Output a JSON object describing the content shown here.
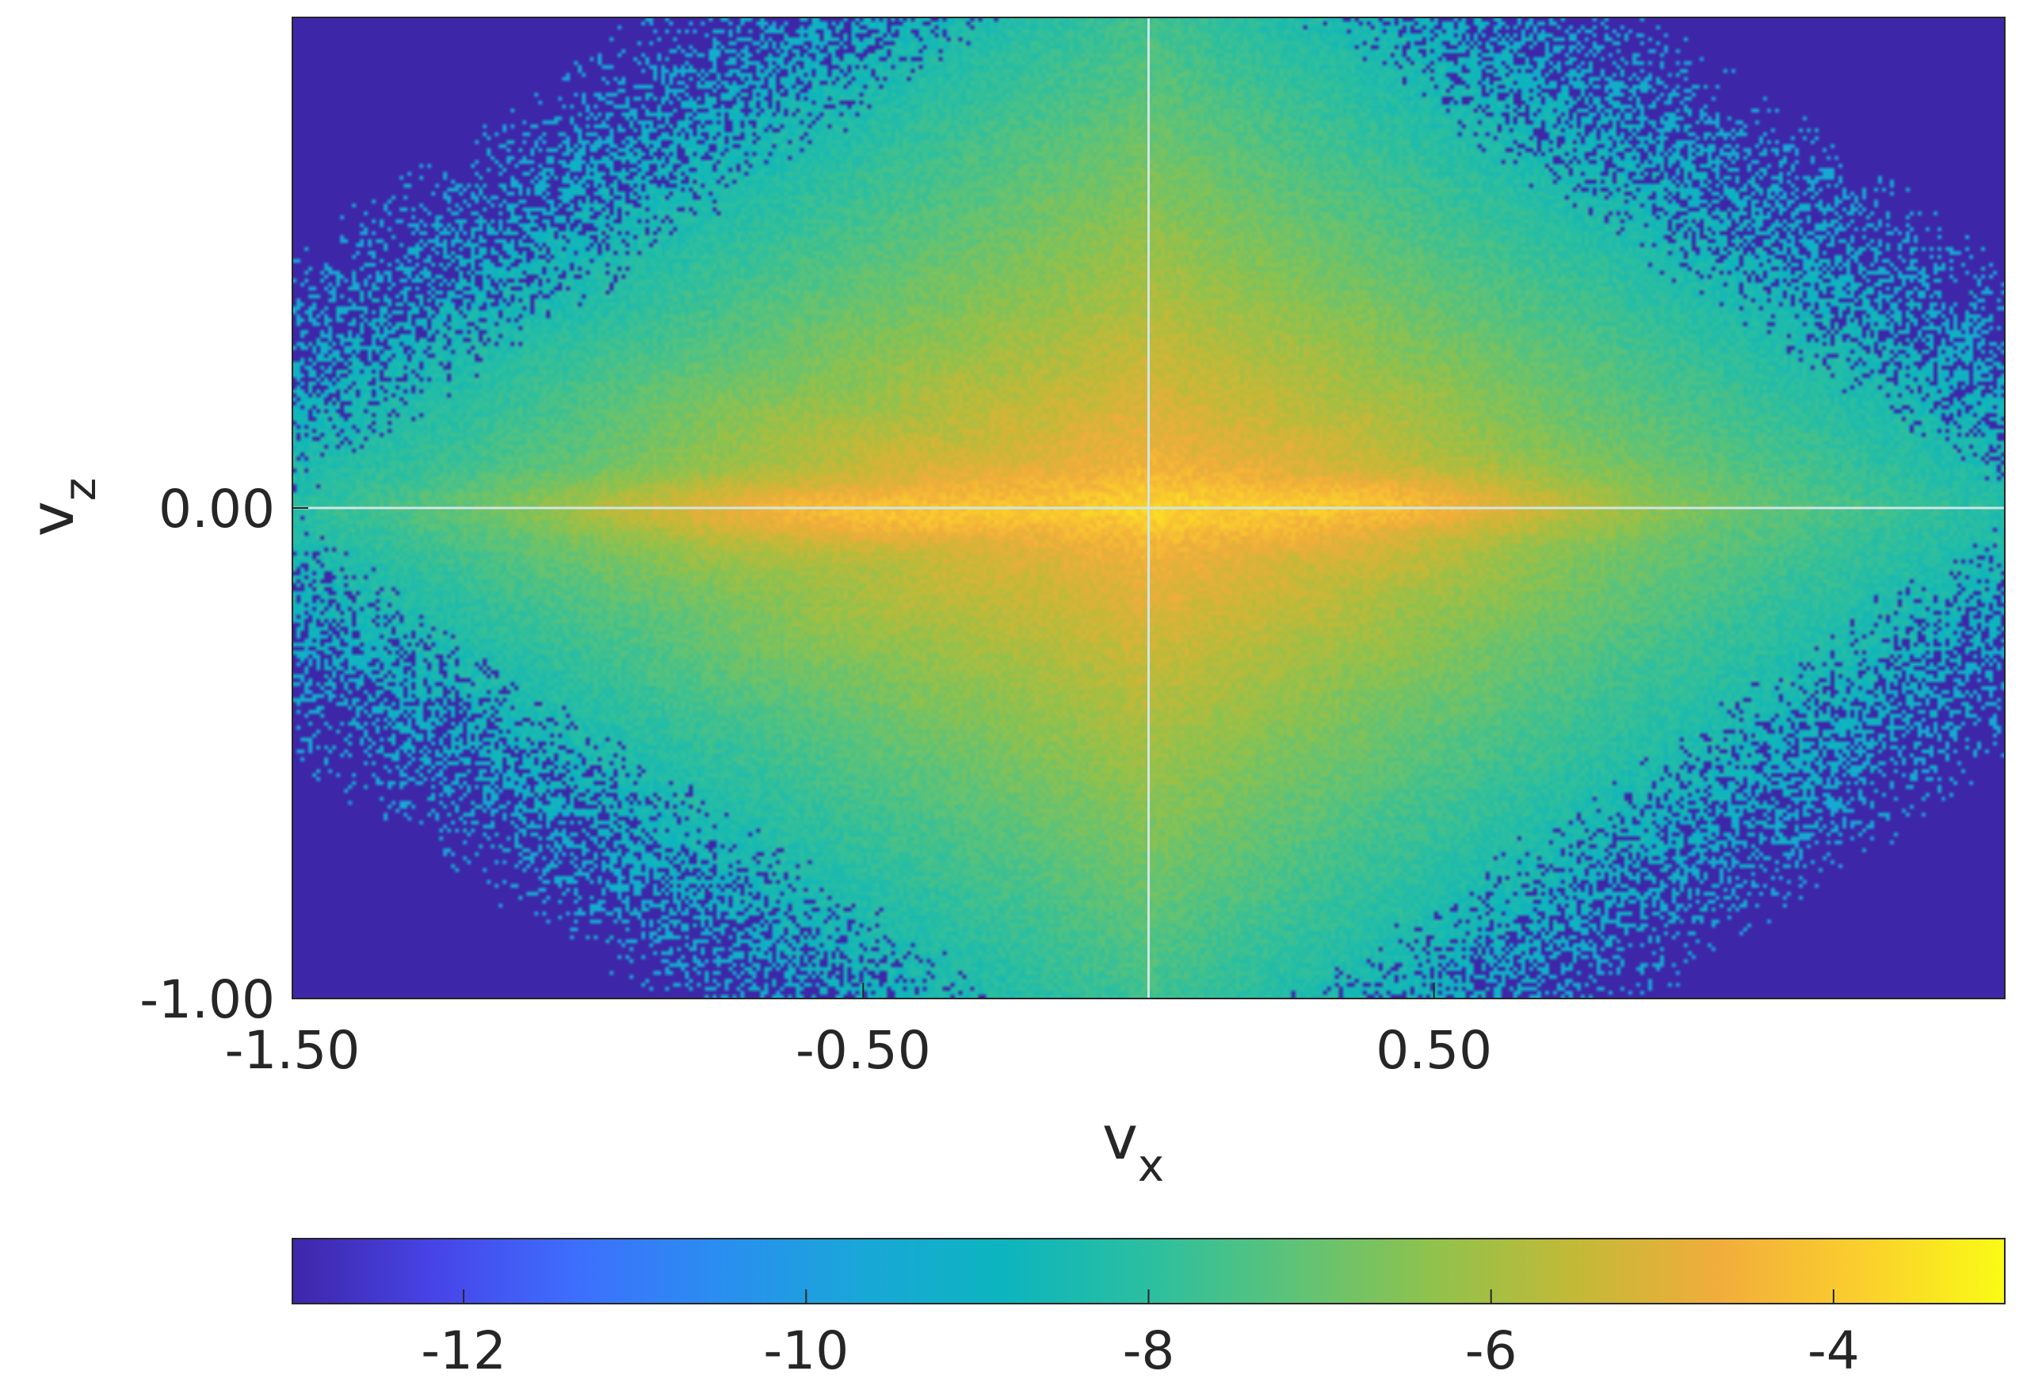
{
  "chart_data": {
    "type": "heatmap",
    "title": "",
    "xlabel": {
      "base": "v",
      "sub": "x"
    },
    "ylabel": {
      "base": "v",
      "sub": "z"
    },
    "xlim": [
      -1.5,
      1.5
    ],
    "ylim": [
      -1.0,
      1.0
    ],
    "xticks": [
      -1.5,
      -0.5,
      0.5
    ],
    "xtick_labels": [
      "-1.50",
      "-0.50",
      "0.50"
    ],
    "yticks": [
      -1.0,
      0.0
    ],
    "ytick_labels": [
      "-1.00",
      "0.00"
    ],
    "reference_lines": {
      "vertical_x": 0.0,
      "horizontal_y": 0.0,
      "color": "#cfe6e6"
    },
    "colormap": "parula",
    "background_color": "#3e26a8",
    "colorbar": {
      "orientation": "horizontal",
      "placement": "bottom",
      "range": [
        -13,
        -3
      ],
      "ticks": [
        -12,
        -10,
        -8,
        -6,
        -4
      ],
      "tick_labels": [
        "-12",
        "-10",
        "-8",
        "-6",
        "-4"
      ],
      "stops": [
        "#3e26a8",
        "#4744e8",
        "#3d6ffd",
        "#2a8ef0",
        "#19a7d8",
        "#0cb5be",
        "#2bbfa0",
        "#5dc378",
        "#90c24c",
        "#c4b937",
        "#f1ad3b",
        "#fbcf2d",
        "#f9fb15"
      ]
    },
    "density_description_values": {
      "peak_log_density": -3.5,
      "floor_log_density": -13
    }
  }
}
